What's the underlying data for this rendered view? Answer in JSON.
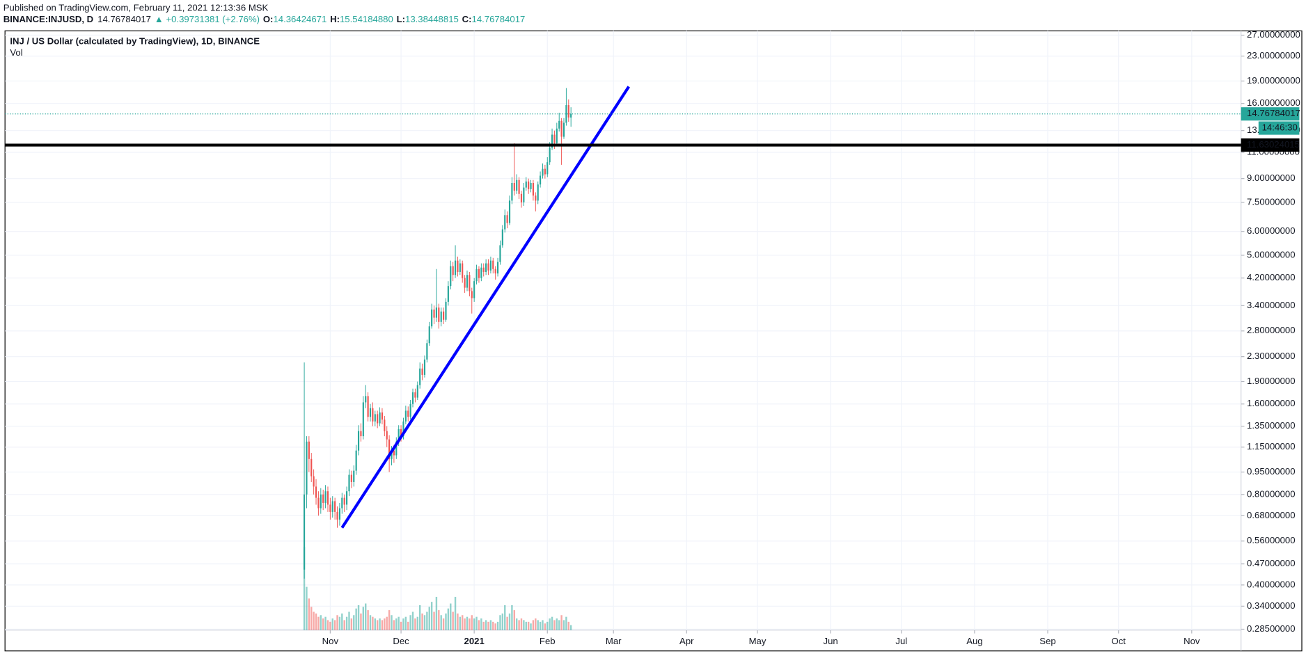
{
  "chart_data": {
    "type": "candlestick",
    "header": {
      "published": "Published on TradingView.com, February 11, 2021 12:13:36 MSK",
      "symbol": "BINANCE:INJUSD, D",
      "price": "14.76784017",
      "change": "▲ +0.39731381 (+2.76%)",
      "ohlc": [
        {
          "key": "O:",
          "value": "14.36424671"
        },
        {
          "key": "H:",
          "value": "15.54184880"
        },
        {
          "key": "L:",
          "value": "13.38448815"
        },
        {
          "key": "C:",
          "value": "14.76784017"
        }
      ]
    },
    "title": "INJ / US Dollar (calculated by TradingView), 1D, BINANCE",
    "volume_label": "Vol",
    "log_scale": true,
    "grid": true,
    "up_color": "#26a69a",
    "down_color": "#ef5350",
    "xlim": [
      -126.8,
      396.9
    ],
    "xticks": [
      {
        "value": 11,
        "label": "Nov"
      },
      {
        "value": 41,
        "label": "Dec"
      },
      {
        "value": 72,
        "label": "2021"
      },
      {
        "value": 103,
        "label": "Feb"
      },
      {
        "value": 131,
        "label": "Mar"
      },
      {
        "value": 162,
        "label": "Apr"
      },
      {
        "value": 192,
        "label": "May"
      },
      {
        "value": 223,
        "label": "Jun"
      },
      {
        "value": 253,
        "label": "Jul"
      },
      {
        "value": 284,
        "label": "Aug"
      },
      {
        "value": 315,
        "label": "Sep"
      },
      {
        "value": 345,
        "label": "Oct"
      },
      {
        "value": 376,
        "label": "Nov"
      }
    ],
    "ylim": [
      0.283,
      27.9
    ],
    "yticks": [
      {
        "value": 27,
        "label": "27.00000000"
      },
      {
        "value": 23,
        "label": "23.00000000"
      },
      {
        "value": 19,
        "label": "19.00000000"
      },
      {
        "value": 16,
        "label": "16.00000000"
      },
      {
        "value": 13,
        "label": "13.00000000"
      },
      {
        "value": 11,
        "label": "11.00000000"
      },
      {
        "value": 9,
        "label": "9.00000000"
      },
      {
        "value": 7.5,
        "label": "7.50000000"
      },
      {
        "value": 6,
        "label": "6.00000000"
      },
      {
        "value": 5,
        "label": "5.00000000"
      },
      {
        "value": 4.2,
        "label": "4.20000000"
      },
      {
        "value": 3.4,
        "label": "3.40000000"
      },
      {
        "value": 2.8,
        "label": "2.80000000"
      },
      {
        "value": 2.3,
        "label": "2.30000000"
      },
      {
        "value": 1.9,
        "label": "1.90000000"
      },
      {
        "value": 1.6,
        "label": "1.60000000"
      },
      {
        "value": 1.35,
        "label": "1.35000000"
      },
      {
        "value": 1.15,
        "label": "1.15000000"
      },
      {
        "value": 0.95,
        "label": "0.95000000"
      },
      {
        "value": 0.8,
        "label": "0.80000000"
      },
      {
        "value": 0.68,
        "label": "0.68000000"
      },
      {
        "value": 0.56,
        "label": "0.56000000"
      },
      {
        "value": 0.47,
        "label": "0.47000000"
      },
      {
        "value": 0.4,
        "label": "0.40000000"
      },
      {
        "value": 0.34,
        "label": "0.34000000"
      },
      {
        "value": 0.285,
        "label": "0.28500000"
      }
    ],
    "open": [
      0.45,
      0.8,
      1.2,
      1.05,
      0.92,
      0.85,
      0.78,
      0.72,
      0.8,
      0.75,
      0.82,
      0.74,
      0.7,
      0.76,
      0.7,
      0.66,
      0.72,
      0.78,
      0.74,
      0.82,
      0.93,
      0.88,
      0.96,
      1.12,
      1.3,
      1.25,
      1.62,
      1.7,
      1.45,
      1.55,
      1.4,
      1.48,
      1.38,
      1.5,
      1.42,
      1.3,
      1.22,
      1.05,
      1.12,
      1.08,
      1.2,
      1.32,
      1.25,
      1.4,
      1.52,
      1.45,
      1.6,
      1.75,
      1.68,
      1.85,
      2.1,
      2.0,
      2.25,
      2.55,
      2.9,
      3.3,
      3.1,
      3.35,
      3.0,
      3.25,
      3.05,
      3.5,
      3.95,
      4.6,
      4.3,
      4.8,
      4.4,
      4.7,
      4.2,
      3.9,
      4.3,
      3.8,
      3.6,
      4.1,
      4.5,
      4.2,
      4.55,
      4.4,
      4.7,
      4.45,
      4.8,
      4.5,
      4.35,
      4.75,
      5.4,
      6.1,
      6.8,
      6.4,
      7.6,
      8.7,
      8.2,
      8.9,
      8.0,
      7.5,
      8.4,
      8.8,
      8.3,
      8.7,
      7.9,
      7.6,
      8.6,
      9.2,
      9.7,
      9.3,
      10.2,
      11.4,
      12.6,
      11.8,
      13.2,
      14.0,
      12.4,
      13.8,
      15.8,
      14.36424671
    ],
    "high": [
      2.2,
      1.25,
      1.25,
      1.1,
      0.97,
      0.9,
      0.82,
      0.84,
      0.83,
      0.86,
      0.85,
      0.78,
      0.79,
      0.78,
      0.73,
      0.75,
      0.81,
      0.8,
      0.85,
      0.97,
      0.96,
      1.0,
      1.17,
      1.36,
      1.38,
      1.7,
      1.85,
      1.75,
      1.6,
      1.62,
      1.52,
      1.52,
      1.56,
      1.55,
      1.46,
      1.35,
      1.26,
      1.16,
      1.17,
      1.24,
      1.36,
      1.36,
      1.44,
      1.58,
      1.57,
      1.65,
      1.8,
      1.8,
      1.9,
      2.2,
      2.18,
      2.32,
      2.62,
      3.0,
      3.45,
      3.4,
      4.5,
      3.45,
      3.35,
      3.35,
      3.6,
      4.1,
      4.8,
      4.75,
      5.4,
      4.95,
      4.85,
      4.8,
      4.3,
      4.45,
      4.4,
      3.9,
      4.2,
      4.65,
      4.6,
      4.7,
      4.7,
      4.85,
      4.85,
      4.95,
      4.9,
      4.6,
      4.9,
      5.6,
      6.3,
      7.1,
      7.0,
      7.9,
      9.1,
      11.8,
      9.3,
      9.1,
      8.2,
      8.7,
      9.1,
      9.0,
      8.9,
      8.9,
      8.1,
      8.8,
      9.5,
      10.1,
      10.0,
      10.6,
      11.9,
      13.2,
      13.0,
      13.8,
      14.9,
      14.3,
      14.3,
      18.0,
      16.5,
      15.5418488
    ],
    "low": [
      0.42,
      0.72,
      0.95,
      0.88,
      0.8,
      0.74,
      0.68,
      0.69,
      0.71,
      0.72,
      0.7,
      0.66,
      0.67,
      0.66,
      0.62,
      0.63,
      0.69,
      0.7,
      0.71,
      0.79,
      0.84,
      0.85,
      0.93,
      1.08,
      1.2,
      1.22,
      1.55,
      1.4,
      1.4,
      1.35,
      1.35,
      1.33,
      1.35,
      1.37,
      1.25,
      1.15,
      0.95,
      1.0,
      1.02,
      1.05,
      1.16,
      1.2,
      1.22,
      1.37,
      1.4,
      1.42,
      1.56,
      1.62,
      1.65,
      1.8,
      1.92,
      1.96,
      2.2,
      2.5,
      2.85,
      2.95,
      3.0,
      2.85,
      2.9,
      2.95,
      3.0,
      3.4,
      3.85,
      4.1,
      4.2,
      4.25,
      4.3,
      4.05,
      3.75,
      3.8,
      3.65,
      3.2,
      3.5,
      4.0,
      4.05,
      4.1,
      4.25,
      4.3,
      4.3,
      4.35,
      4.35,
      4.15,
      4.25,
      4.65,
      5.3,
      5.95,
      6.15,
      6.3,
      7.4,
      7.9,
      8.0,
      7.7,
      7.2,
      7.3,
      8.2,
      8.0,
      8.1,
      7.6,
      7.0,
      7.4,
      8.4,
      9.0,
      9.0,
      9.1,
      10.0,
      11.2,
      11.3,
      11.6,
      12.9,
      10.0,
      12.2,
      13.5,
      13.9,
      13.38448815
    ],
    "close": [
      0.8,
      1.2,
      1.05,
      0.92,
      0.85,
      0.78,
      0.72,
      0.8,
      0.75,
      0.82,
      0.74,
      0.7,
      0.76,
      0.7,
      0.66,
      0.72,
      0.78,
      0.74,
      0.82,
      0.93,
      0.88,
      0.96,
      1.12,
      1.3,
      1.25,
      1.62,
      1.7,
      1.45,
      1.55,
      1.4,
      1.48,
      1.38,
      1.5,
      1.42,
      1.3,
      1.22,
      1.05,
      1.12,
      1.08,
      1.2,
      1.32,
      1.25,
      1.4,
      1.52,
      1.45,
      1.6,
      1.75,
      1.68,
      1.85,
      2.1,
      2.0,
      2.25,
      2.55,
      2.9,
      3.3,
      3.1,
      3.35,
      3.0,
      3.25,
      3.05,
      3.5,
      3.95,
      4.6,
      4.3,
      4.8,
      4.4,
      4.7,
      4.2,
      3.9,
      4.3,
      3.8,
      3.6,
      4.1,
      4.5,
      4.2,
      4.55,
      4.4,
      4.7,
      4.45,
      4.8,
      4.5,
      4.35,
      4.75,
      5.4,
      6.1,
      6.8,
      6.4,
      7.6,
      8.7,
      8.2,
      8.9,
      8.0,
      7.5,
      8.4,
      8.8,
      8.3,
      8.7,
      7.9,
      7.6,
      8.6,
      9.2,
      9.7,
      9.3,
      10.2,
      11.4,
      12.6,
      11.8,
      13.2,
      14.0,
      12.4,
      13.8,
      15.8,
      14.37,
      14.76784017
    ],
    "volume": [
      100,
      52,
      38,
      28,
      22,
      20,
      16,
      18,
      14,
      16,
      12,
      10,
      14,
      12,
      18,
      16,
      20,
      12,
      16,
      22,
      14,
      18,
      26,
      30,
      20,
      28,
      32,
      24,
      18,
      16,
      14,
      12,
      14,
      12,
      14,
      16,
      24,
      18,
      12,
      14,
      16,
      10,
      14,
      16,
      10,
      18,
      22,
      14,
      16,
      30,
      20,
      18,
      22,
      28,
      34,
      22,
      40,
      24,
      18,
      14,
      20,
      26,
      32,
      22,
      40,
      20,
      16,
      18,
      14,
      16,
      14,
      18,
      14,
      16,
      12,
      14,
      10,
      12,
      10,
      12,
      10,
      8,
      10,
      18,
      20,
      30,
      16,
      20,
      30,
      24,
      14,
      12,
      14,
      12,
      10,
      10,
      8,
      12,
      14,
      12,
      10,
      12,
      8,
      10,
      14,
      16,
      12,
      14,
      12,
      18,
      12,
      16,
      10,
      6
    ],
    "trendline": {
      "x": [
        16,
        137.5
      ],
      "y": [
        0.62,
        18.2
      ],
      "color": "#0000ff"
    },
    "horizontal_line": {
      "value": 11.63024015,
      "label": "11.63024015",
      "color": "#000000"
    },
    "price_line": {
      "value": 14.76784017,
      "label": "14.76784017",
      "countdown": "14:46:30"
    }
  }
}
